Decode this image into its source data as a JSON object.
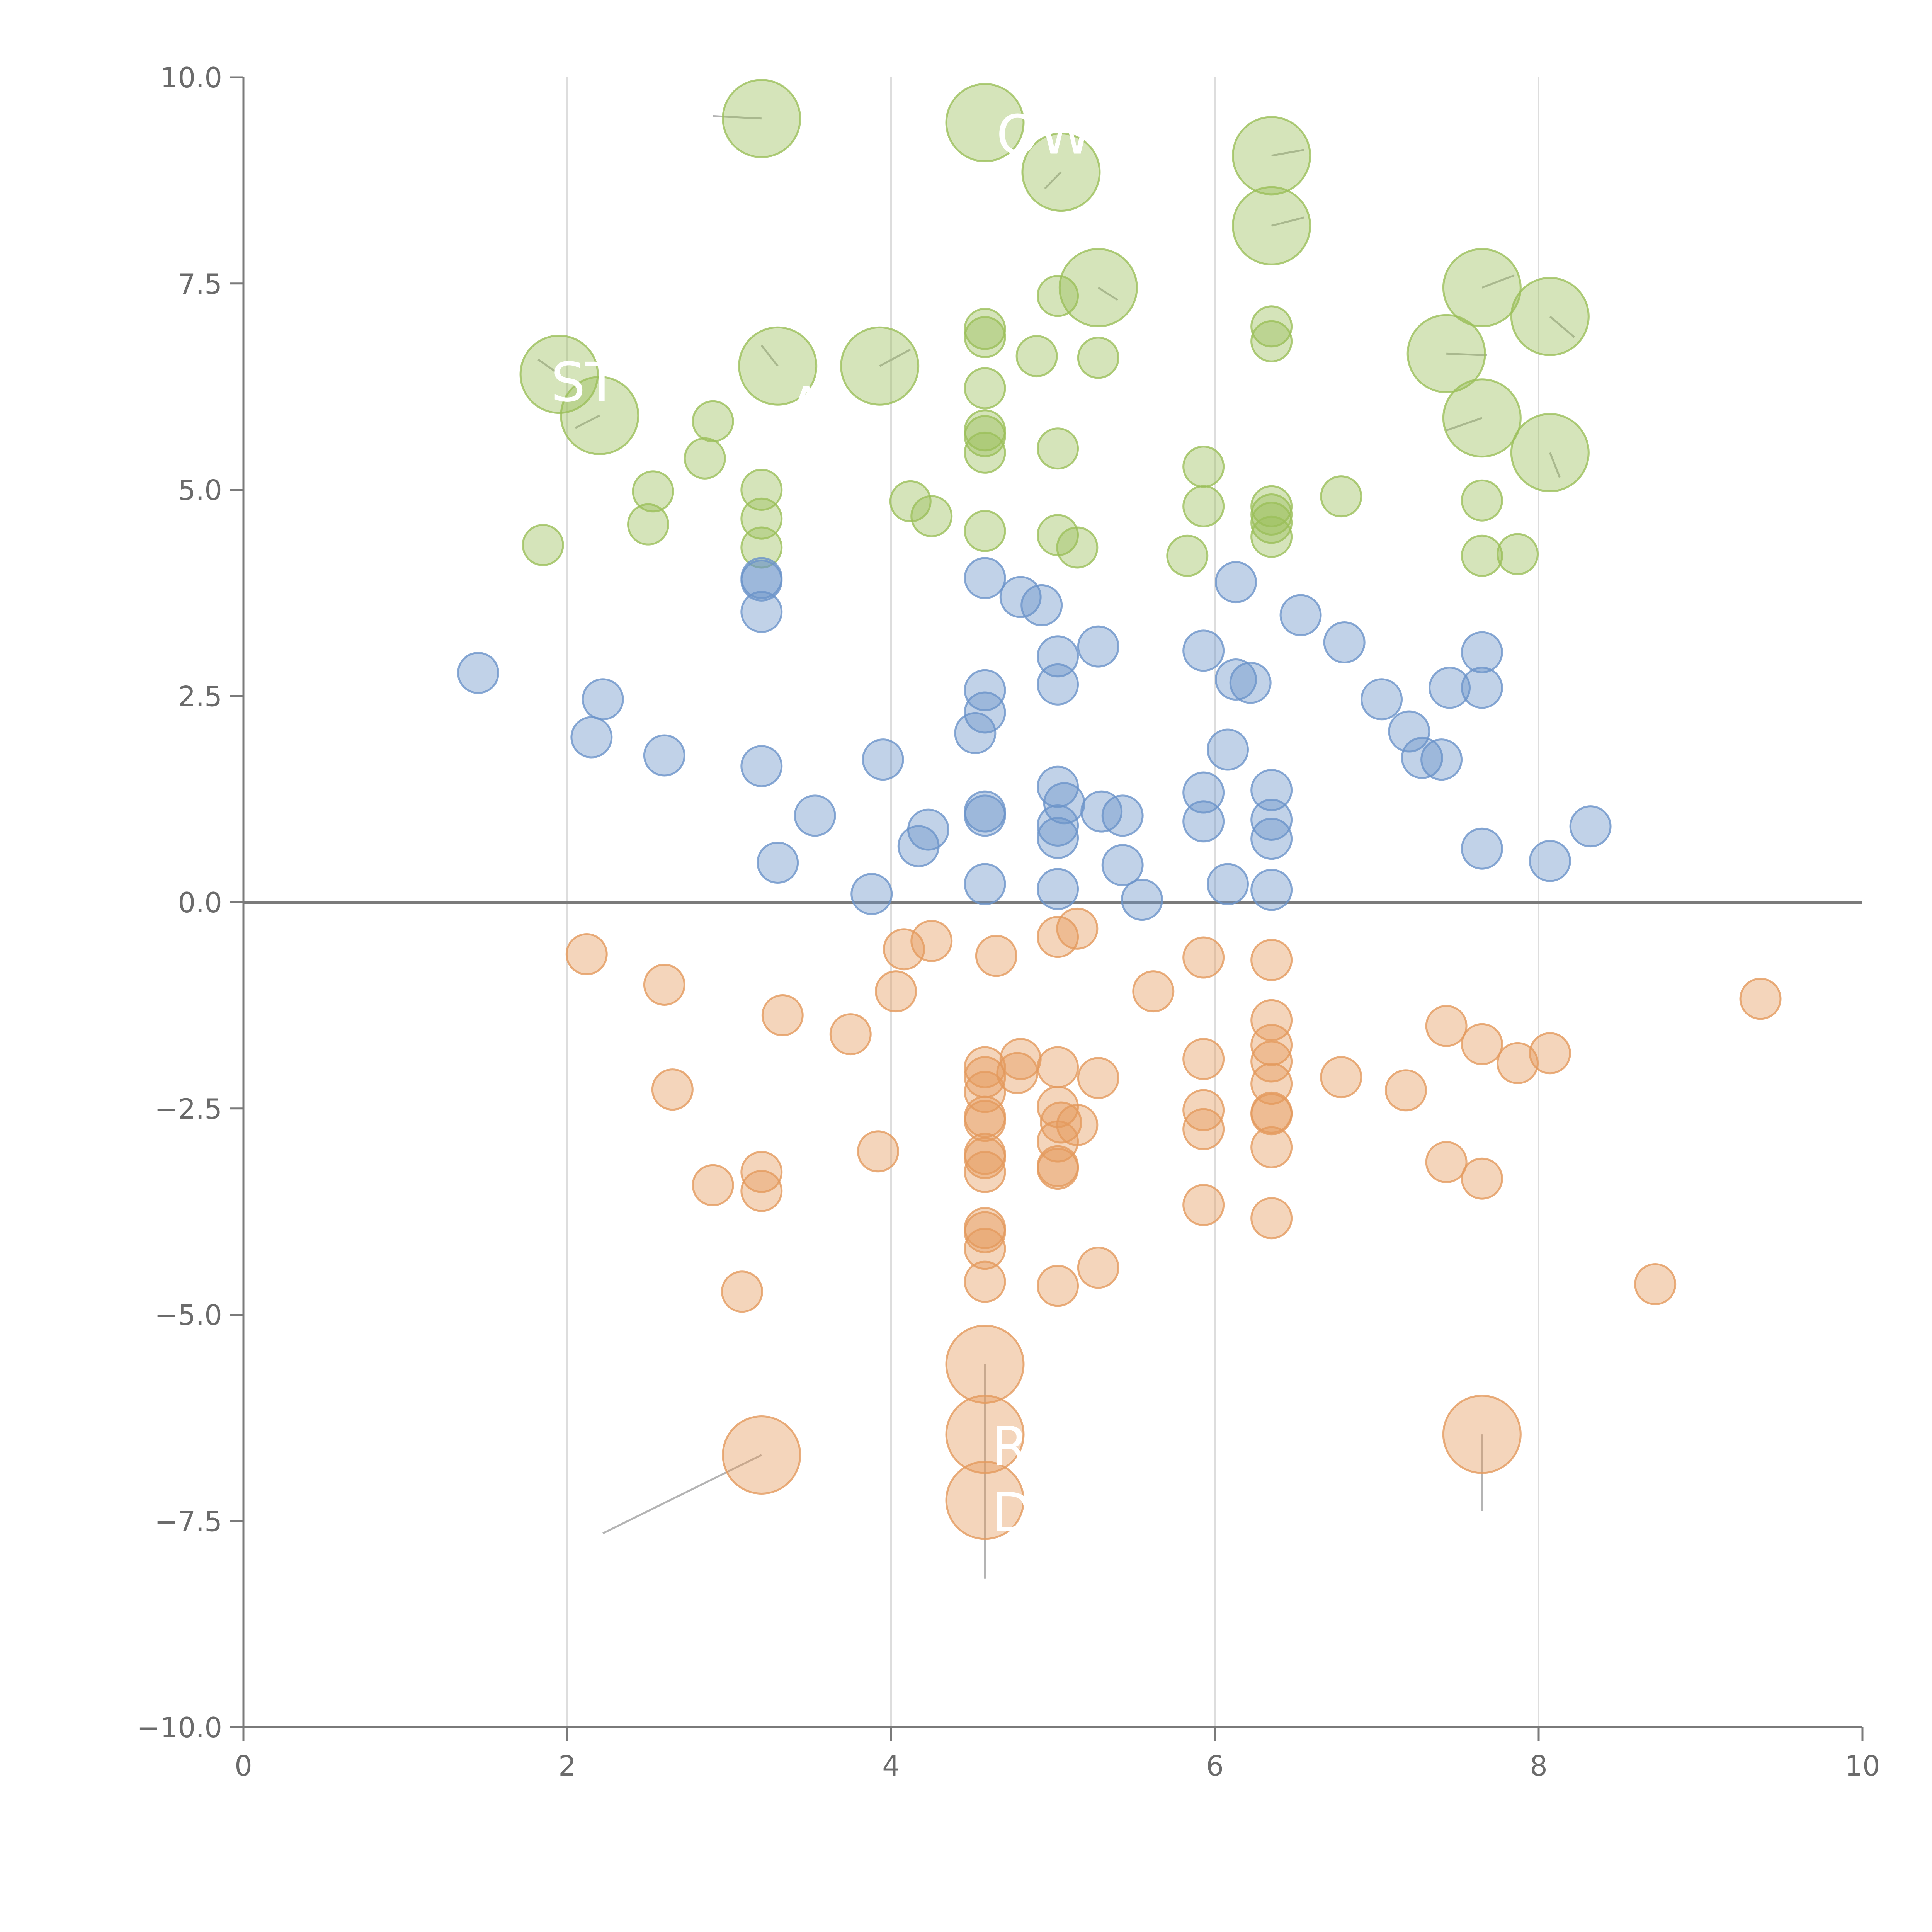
{
  "chart_data": {
    "type": "scatter",
    "title": "",
    "xlabel": "",
    "ylabel": "",
    "xlim": [
      0,
      10
    ],
    "ylim": [
      -10,
      10
    ],
    "x_ticks": [
      0,
      2,
      4,
      6,
      8,
      10
    ],
    "y_ticks": [
      -10.0,
      -7.5,
      -5.0,
      -2.5,
      0.0,
      2.5,
      5.0,
      7.5,
      10.0
    ],
    "x_tick_labels": [
      "0",
      "2",
      "4",
      "6",
      "8",
      "10"
    ],
    "y_tick_labels": [
      "−10.0",
      "−7.5",
      "−5.0",
      "−2.5",
      "0.0",
      "2.5",
      "5.0",
      "7.5",
      "10.0"
    ],
    "vertical_gridlines": [
      2,
      4,
      6,
      8
    ],
    "zero_line": 0,
    "colors": {
      "green": "#9bbf5a",
      "blue": "#6b93c9",
      "orange": "#e49a5e"
    },
    "series": [
      {
        "name": "green",
        "points": [
          [
            3.2,
            9.5,
            3
          ],
          [
            4.58,
            9.45,
            3
          ],
          [
            5.05,
            8.85,
            3
          ],
          [
            6.35,
            9.05,
            3
          ],
          [
            6.35,
            8.2,
            3
          ],
          [
            5.28,
            7.45,
            3
          ],
          [
            7.65,
            7.45,
            3
          ],
          [
            8.07,
            7.1,
            3
          ],
          [
            7.43,
            6.65,
            3
          ],
          [
            1.95,
            6.4,
            3
          ],
          [
            3.3,
            6.5,
            3
          ],
          [
            3.93,
            6.5,
            3
          ],
          [
            2.2,
            5.9,
            3
          ],
          [
            7.65,
            5.87,
            3
          ],
          [
            8.07,
            5.45,
            3
          ],
          [
            4.58,
            6.95,
            1
          ],
          [
            4.58,
            6.85,
            1
          ],
          [
            5.03,
            7.35,
            1
          ],
          [
            4.9,
            6.62,
            1
          ],
          [
            5.28,
            6.6,
            1
          ],
          [
            6.35,
            6.98,
            1
          ],
          [
            6.35,
            6.8,
            1
          ],
          [
            4.58,
            6.23,
            1
          ],
          [
            2.9,
            5.83,
            1
          ],
          [
            4.58,
            5.72,
            1
          ],
          [
            4.58,
            5.65,
            1
          ],
          [
            4.58,
            5.45,
            1
          ],
          [
            5.03,
            5.5,
            1
          ],
          [
            2.85,
            5.38,
            1
          ],
          [
            5.93,
            5.28,
            1
          ],
          [
            2.53,
            4.98,
            1
          ],
          [
            3.2,
            5.0,
            1
          ],
          [
            6.78,
            4.92,
            1
          ],
          [
            4.12,
            4.86,
            1
          ],
          [
            5.93,
            4.8,
            1
          ],
          [
            6.35,
            4.8,
            1
          ],
          [
            6.35,
            4.7,
            1
          ],
          [
            6.35,
            4.6,
            1
          ],
          [
            7.65,
            4.87,
            1
          ],
          [
            3.2,
            4.65,
            1
          ],
          [
            4.25,
            4.68,
            1
          ],
          [
            2.5,
            4.58,
            1
          ],
          [
            4.58,
            4.5,
            1
          ],
          [
            5.03,
            4.45,
            1
          ],
          [
            6.35,
            4.43,
            1
          ],
          [
            1.85,
            4.33,
            1
          ],
          [
            3.2,
            4.3,
            1
          ],
          [
            5.15,
            4.3,
            1
          ],
          [
            5.83,
            4.2,
            1
          ],
          [
            7.65,
            4.2,
            1
          ],
          [
            7.87,
            4.22,
            1
          ]
        ]
      },
      {
        "name": "blue",
        "points": [
          [
            3.2,
            3.93,
            1
          ],
          [
            3.2,
            3.9,
            1
          ],
          [
            4.58,
            3.93,
            1
          ],
          [
            6.13,
            3.88,
            1
          ],
          [
            4.8,
            3.7,
            1
          ],
          [
            4.93,
            3.6,
            1
          ],
          [
            3.2,
            3.52,
            1
          ],
          [
            6.53,
            3.48,
            1
          ],
          [
            6.8,
            3.15,
            1
          ],
          [
            5.28,
            3.1,
            1
          ],
          [
            5.93,
            3.05,
            1
          ],
          [
            7.65,
            3.03,
            1
          ],
          [
            5.03,
            2.98,
            1
          ],
          [
            1.45,
            2.78,
            1
          ],
          [
            6.13,
            2.7,
            1
          ],
          [
            6.22,
            2.66,
            1
          ],
          [
            5.03,
            2.64,
            1
          ],
          [
            7.45,
            2.6,
            1
          ],
          [
            7.65,
            2.6,
            1
          ],
          [
            4.58,
            2.57,
            1
          ],
          [
            2.22,
            2.46,
            1
          ],
          [
            7.03,
            2.46,
            1
          ],
          [
            4.58,
            2.3,
            1
          ],
          [
            7.2,
            2.07,
            1
          ],
          [
            4.52,
            2.05,
            1
          ],
          [
            2.15,
            2.0,
            1
          ],
          [
            6.08,
            1.85,
            1
          ],
          [
            2.6,
            1.78,
            1
          ],
          [
            3.95,
            1.73,
            1
          ],
          [
            7.28,
            1.75,
            1
          ],
          [
            7.4,
            1.73,
            1
          ],
          [
            3.2,
            1.65,
            1
          ],
          [
            5.03,
            1.4,
            1
          ],
          [
            5.93,
            1.33,
            1
          ],
          [
            6.35,
            1.36,
            1
          ],
          [
            5.07,
            1.2,
            1
          ],
          [
            5.3,
            1.1,
            1
          ],
          [
            4.58,
            1.1,
            1
          ],
          [
            4.58,
            1.05,
            1
          ],
          [
            3.53,
            1.05,
            1
          ],
          [
            5.43,
            1.05,
            1
          ],
          [
            5.93,
            0.98,
            1
          ],
          [
            6.35,
            1.0,
            1
          ],
          [
            5.03,
            0.93,
            1
          ],
          [
            4.23,
            0.88,
            1
          ],
          [
            8.32,
            0.92,
            1
          ],
          [
            5.03,
            0.78,
            1
          ],
          [
            6.35,
            0.77,
            1
          ],
          [
            4.17,
            0.68,
            1
          ],
          [
            7.65,
            0.65,
            1
          ],
          [
            3.3,
            0.48,
            1
          ],
          [
            5.43,
            0.45,
            1
          ],
          [
            8.07,
            0.5,
            1
          ],
          [
            4.58,
            0.22,
            1
          ],
          [
            6.08,
            0.22,
            1
          ],
          [
            5.03,
            0.16,
            1
          ],
          [
            6.35,
            0.15,
            1
          ],
          [
            3.88,
            0.1,
            1
          ],
          [
            5.55,
            0.03,
            1
          ]
        ]
      },
      {
        "name": "orange",
        "points": [
          [
            5.15,
            -0.32,
            1
          ],
          [
            4.25,
            -0.47,
            1
          ],
          [
            5.03,
            -0.42,
            1
          ],
          [
            4.08,
            -0.57,
            1
          ],
          [
            2.12,
            -0.63,
            1
          ],
          [
            4.65,
            -0.65,
            1
          ],
          [
            5.93,
            -0.67,
            1
          ],
          [
            6.35,
            -0.7,
            1
          ],
          [
            2.6,
            -1.0,
            1
          ],
          [
            4.03,
            -1.08,
            1
          ],
          [
            5.62,
            -1.08,
            1
          ],
          [
            9.37,
            -1.17,
            1
          ],
          [
            3.33,
            -1.37,
            1
          ],
          [
            6.35,
            -1.43,
            1
          ],
          [
            7.43,
            -1.5,
            1
          ],
          [
            3.75,
            -1.6,
            1
          ],
          [
            6.35,
            -1.73,
            1
          ],
          [
            7.65,
            -1.72,
            1
          ],
          [
            8.07,
            -1.83,
            1
          ],
          [
            4.8,
            -1.9,
            1
          ],
          [
            5.93,
            -1.9,
            1
          ],
          [
            6.35,
            -1.93,
            1
          ],
          [
            7.87,
            -1.95,
            1
          ],
          [
            4.58,
            -2.0,
            1
          ],
          [
            5.03,
            -2.0,
            1
          ],
          [
            4.78,
            -2.07,
            1
          ],
          [
            4.58,
            -2.12,
            1
          ],
          [
            6.78,
            -2.12,
            1
          ],
          [
            5.28,
            -2.13,
            1
          ],
          [
            6.35,
            -2.2,
            1
          ],
          [
            4.58,
            -2.3,
            1
          ],
          [
            2.65,
            -2.27,
            1
          ],
          [
            7.18,
            -2.28,
            1
          ],
          [
            5.03,
            -2.48,
            1
          ],
          [
            5.93,
            -2.52,
            1
          ],
          [
            6.35,
            -2.55,
            1
          ],
          [
            6.35,
            -2.57,
            1
          ],
          [
            4.58,
            -2.6,
            1
          ],
          [
            4.58,
            -2.65,
            1
          ],
          [
            5.05,
            -2.67,
            1
          ],
          [
            5.15,
            -2.7,
            1
          ],
          [
            5.93,
            -2.75,
            1
          ],
          [
            5.03,
            -2.9,
            1
          ],
          [
            6.35,
            -2.97,
            1
          ],
          [
            3.92,
            -3.02,
            1
          ],
          [
            4.58,
            -3.05,
            1
          ],
          [
            4.58,
            -3.1,
            1
          ],
          [
            7.43,
            -3.15,
            1
          ],
          [
            5.03,
            -3.2,
            1
          ],
          [
            5.03,
            -3.23,
            1
          ],
          [
            4.58,
            -3.27,
            1
          ],
          [
            3.2,
            -3.27,
            1
          ],
          [
            7.65,
            -3.35,
            1
          ],
          [
            2.9,
            -3.43,
            1
          ],
          [
            3.2,
            -3.5,
            1
          ],
          [
            5.93,
            -3.67,
            1
          ],
          [
            6.35,
            -3.83,
            1
          ],
          [
            4.58,
            -3.95,
            1
          ],
          [
            4.58,
            -4.0,
            1
          ],
          [
            4.58,
            -4.2,
            1
          ],
          [
            5.28,
            -4.43,
            1
          ],
          [
            4.58,
            -4.6,
            1
          ],
          [
            5.03,
            -4.65,
            1
          ],
          [
            8.72,
            -4.63,
            1
          ],
          [
            3.08,
            -4.72,
            1
          ],
          [
            4.58,
            -5.6,
            3
          ],
          [
            4.58,
            -6.45,
            3
          ],
          [
            7.65,
            -6.45,
            3
          ],
          [
            3.2,
            -6.7,
            3
          ],
          [
            4.58,
            -7.25,
            3
          ]
        ]
      }
    ],
    "leader_lines": [
      [
        3.2,
        -6.7,
        2.22,
        -7.65
      ],
      [
        4.58,
        -5.6,
        4.58,
        -8.2
      ],
      [
        7.65,
        -6.45,
        7.65,
        -7.38
      ],
      [
        3.2,
        9.5,
        2.9,
        9.53
      ],
      [
        5.05,
        8.85,
        4.95,
        8.65
      ],
      [
        6.35,
        9.05,
        6.55,
        9.12
      ],
      [
        6.35,
        8.2,
        6.55,
        8.3
      ],
      [
        5.28,
        7.45,
        5.4,
        7.3
      ],
      [
        7.65,
        7.45,
        7.85,
        7.6
      ],
      [
        8.07,
        7.1,
        8.22,
        6.85
      ],
      [
        7.43,
        6.65,
        7.68,
        6.63
      ],
      [
        1.95,
        6.4,
        1.82,
        6.58
      ],
      [
        3.3,
        6.5,
        3.2,
        6.75
      ],
      [
        3.93,
        6.5,
        4.12,
        6.7
      ],
      [
        2.2,
        5.9,
        2.05,
        5.75
      ],
      [
        7.65,
        5.87,
        7.43,
        5.72
      ],
      [
        8.07,
        5.45,
        8.13,
        5.15
      ]
    ],
    "annotations": [
      {
        "text": "OWK",
        "x": 4.65,
        "y": 9.3
      },
      {
        "text": "ST",
        "x": 1.9,
        "y": 6.3
      },
      {
        "text": "· A",
        "x": 3.15,
        "y": 6.0
      },
      {
        "text": "R",
        "x": 4.62,
        "y": -6.6
      },
      {
        "text": "D",
        "x": 4.62,
        "y": -7.4
      }
    ]
  }
}
